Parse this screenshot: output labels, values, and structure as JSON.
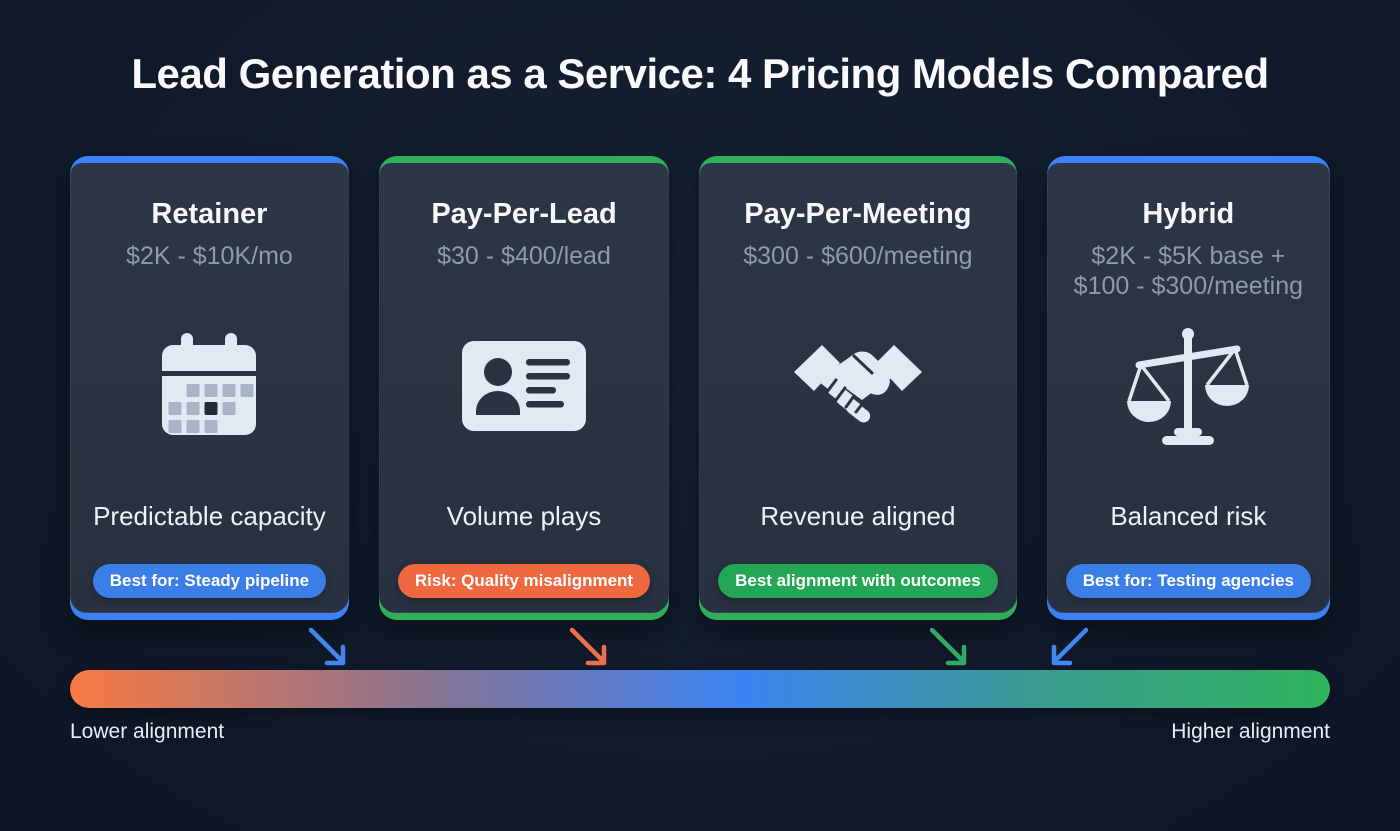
{
  "title": "Lead Generation as a Service: 4 Pricing Models Compared",
  "cards": [
    {
      "name": "Retainer",
      "price": "$2K - $10K/mo",
      "icon": "calendar-icon",
      "tagline": "Predictable capacity",
      "badge": "Best for: Steady pipeline",
      "badge_color": "#3b7ee8",
      "accent": "#3b82f6"
    },
    {
      "name": "Pay-Per-Lead",
      "price": "$30 - $400/lead",
      "icon": "id-card-icon",
      "tagline": "Volume plays",
      "badge": "Risk: Quality misalignment",
      "badge_color": "#f0683f",
      "accent": "#2cb05b"
    },
    {
      "name": "Pay-Per-Meeting",
      "price": "$300 - $600/meeting",
      "icon": "handshake-icon",
      "tagline": "Revenue aligned",
      "badge": "Best alignment with outcomes",
      "badge_color": "#23a757",
      "accent": "#2cb05b"
    },
    {
      "name": "Hybrid",
      "price": "$2K - $5K base +\n$100 - $300/meeting",
      "icon": "scales-icon",
      "tagline": "Balanced risk",
      "badge": "Best for: Testing agencies",
      "badge_color": "#3b7ee8",
      "accent": "#3b82f6"
    }
  ],
  "arrows": [
    {
      "color": "#4486f0",
      "direction": "down-right"
    },
    {
      "color": "#ee7148",
      "direction": "down-right"
    },
    {
      "color": "#2fae62",
      "direction": "down-right"
    },
    {
      "color": "#4486f0",
      "direction": "down-left"
    }
  ],
  "alignment_scale": {
    "left_label": "Lower alignment",
    "right_label": "Higher alignment",
    "gradient_stops": [
      {
        "color": "#f87a43",
        "pos": 0
      },
      {
        "color": "#8a7390",
        "pos": 28
      },
      {
        "color": "#3d82f2",
        "pos": 53
      },
      {
        "color": "#3a9b90",
        "pos": 77
      },
      {
        "color": "#2eb45c",
        "pos": 100
      }
    ]
  }
}
